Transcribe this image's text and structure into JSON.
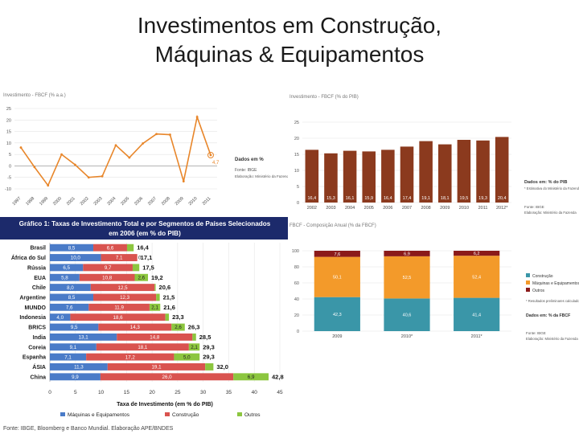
{
  "slide": {
    "title_line1": "Investimentos em Construção,",
    "title_line2": "Máquinas & Equipamentos"
  },
  "colors": {
    "orange": "#e8862a",
    "brown": "#8b3a1e",
    "teal": "#3a96a8",
    "orange_seg": "#f39a2a",
    "dark_red": "#8b1a1a",
    "blue": "#4a7bc8",
    "red": "#d9534f",
    "green": "#8cc63f",
    "navy": "#1c2a6b"
  },
  "chart_data": [
    {
      "type": "line",
      "title": "Investimento - FBCF (% a.a.)",
      "x": [
        "1997",
        "1998",
        "1999",
        "2000",
        "2001",
        "2002",
        "2003",
        "2004",
        "2005",
        "2006",
        "2007",
        "2008",
        "2009",
        "2010",
        "2011"
      ],
      "series": [
        {
          "values": [
            8,
            -0.5,
            -8.5,
            5,
            0.5,
            -5,
            -4.5,
            9,
            3.6,
            9.8,
            13.9,
            13.6,
            -6.7,
            21.3,
            4.7
          ]
        }
      ],
      "ylim": [
        -10,
        25
      ],
      "yticks": [
        "25",
        "20",
        "15",
        "10",
        "5",
        "0",
        "-5",
        "-10"
      ],
      "last_label": "4,7",
      "notes": [
        "Dados em %",
        "Fonte: IBGE",
        "Elaboração: Ministério da Fazenda"
      ]
    },
    {
      "type": "bar",
      "title": "Investimento - FBCF (% do PIB)",
      "categories": [
        "2002",
        "2003",
        "2004",
        "2005",
        "2006",
        "2007",
        "2008",
        "2009",
        "2010",
        "2011",
        "2012*"
      ],
      "values": [
        16.4,
        15.3,
        16.1,
        15.9,
        16.4,
        17.4,
        19.1,
        18.1,
        19.5,
        19.3,
        20.4
      ],
      "value_labels": [
        "16,4",
        "15,3",
        "16,1",
        "15,9",
        "16,4",
        "17,4",
        "19,1",
        "18,1",
        "19,5",
        "19,3",
        "20,4"
      ],
      "ylim": [
        0,
        25
      ],
      "yticks": [
        "25",
        "20",
        "15",
        "10",
        "5",
        "0"
      ],
      "notes": [
        "Dados em: % do PIB",
        "* Estimativa do Ministério da Fazenda",
        "Fonte: IBGE",
        "Elaboração: Ministério da Fazenda"
      ]
    },
    {
      "type": "bar",
      "stacked": true,
      "orientation": "horizontal",
      "title": "Gráfico 1: Taxas de Investimento Total e por Segmentos de Países Selecionados em 2006 (em % do PIB)",
      "categories": [
        "Brasil",
        "África do Sul",
        "Rússia",
        "EUA",
        "Chile",
        "Argentine",
        "MUNDO",
        "Indonesia",
        "BRICS",
        "India",
        "Coreia",
        "Espanha",
        "ÁSIA",
        "China"
      ],
      "series": [
        {
          "name": "Máquinas e Equipamentos",
          "values": [
            8.5,
            10.0,
            6.5,
            5.8,
            8.0,
            8.5,
            7.6,
            4.0,
            9.5,
            13.1,
            9.1,
            7.1,
            11.3,
            9.9
          ],
          "labels": [
            "8,5",
            "10,0",
            "6,5",
            "5,8",
            "8,0",
            "8,5",
            "7,6",
            "4,0",
            "9,5",
            "13,1",
            "9,1",
            "7,1",
            "11,3",
            "9,9"
          ]
        },
        {
          "name": "Construção",
          "values": [
            6.6,
            7.1,
            9.7,
            10.8,
            12.5,
            12.3,
            11.9,
            18.6,
            14.3,
            14.8,
            18.1,
            17.2,
            19.1,
            26.0
          ],
          "labels": [
            "6,6",
            "7,1",
            "9,7",
            "10,8",
            "12,5",
            "12,3",
            "11,9",
            "18,6",
            "14,3",
            "14,8",
            "18,1",
            "17,2",
            "19,1",
            "26,0"
          ]
        },
        {
          "name": "Outros",
          "values": [
            1.3,
            0.0,
            1.3,
            2.6,
            0.2,
            0.7,
            2.1,
            0.7,
            2.6,
            0.7,
            2.1,
            5.0,
            1.6,
            6.9
          ],
          "labels": [
            "",
            "0",
            "",
            "2,6",
            "",
            "",
            "2,1",
            "",
            "2,6",
            "",
            "2,1",
            "5,0",
            "",
            "6,9"
          ]
        }
      ],
      "totals": [
        "16,4",
        "17,1",
        "17,5",
        "19,2",
        "20,6",
        "21,5",
        "21,6",
        "23,3",
        "26,3",
        "28,5",
        "29,3",
        "29,3",
        "32,0",
        "42,8"
      ],
      "xlim": [
        0,
        45
      ],
      "xticks": [
        "0",
        "5",
        "10",
        "15",
        "20",
        "25",
        "30",
        "35",
        "40",
        "45"
      ],
      "xlabel": "Taxa de Investimento (em % do PIB)",
      "legend": [
        "Máquinas e Equipamentos",
        "Construção",
        "Outros"
      ],
      "source": "Fonte: IBGE, Bloomberg e Banco Mundial. Elaboração APE/BNDES"
    },
    {
      "type": "bar",
      "stacked": true,
      "title": "FBCF - Composição Anual (% da FBCF)",
      "categories": [
        "2009",
        "2010*",
        "2011*"
      ],
      "series": [
        {
          "name": "Construção",
          "values": [
            42.3,
            40.6,
            41.4
          ],
          "labels": [
            "42,3",
            "40,6",
            "41,4"
          ]
        },
        {
          "name": "Máquinas e Equipamentos",
          "values": [
            50.1,
            52.5,
            52.4
          ],
          "labels": [
            "50,1",
            "52,5",
            "52,4"
          ]
        },
        {
          "name": "Outros",
          "values": [
            7.6,
            6.9,
            6.2
          ],
          "labels": [
            "7,6",
            "6,9",
            "6,2"
          ]
        }
      ],
      "ylim": [
        0,
        100
      ],
      "yticks": [
        "100",
        "80",
        "60",
        "40",
        "20",
        "0"
      ],
      "legend": [
        "Construção",
        "Máquinas e Equipamentos",
        "Outros"
      ],
      "notes": [
        "* Resultados preliminares calculados a partir das Contas Nacionais Trimestrais",
        "Dados em: % da FBCF",
        "Fonte: IBGE",
        "Elaboração: Ministério da Fazenda"
      ]
    }
  ]
}
